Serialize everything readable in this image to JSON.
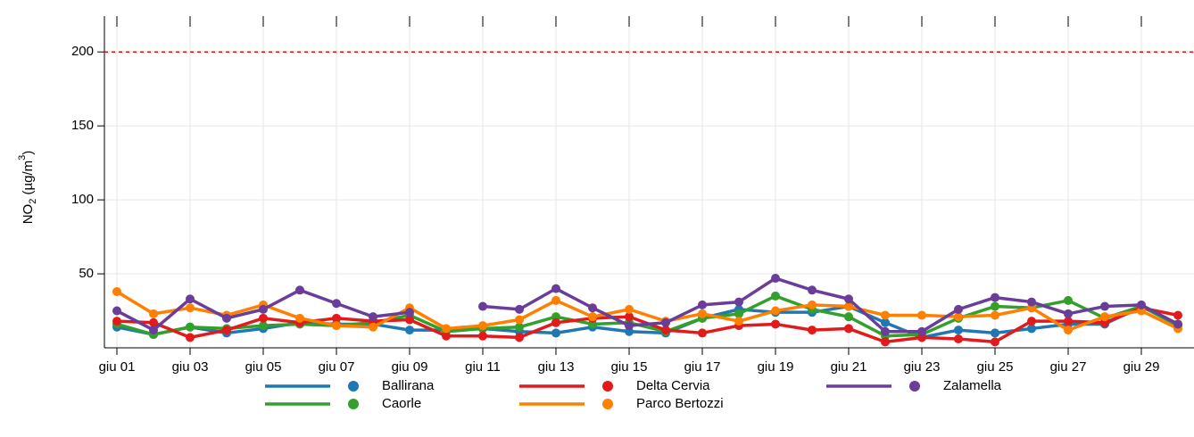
{
  "chart_data": {
    "type": "line",
    "ylabel": [
      "NO",
      "2",
      " (µg/m",
      "3",
      ")"
    ],
    "categories": [
      "giu 01",
      null,
      "giu 03",
      null,
      "giu 05",
      null,
      "giu 07",
      null,
      "giu 09",
      null,
      "giu 11",
      null,
      "giu 13",
      null,
      "giu 15",
      null,
      "giu 17",
      null,
      "giu 19",
      null,
      "giu 21",
      null,
      "giu 23",
      null,
      "giu 25",
      null,
      "giu 27",
      null,
      "giu 29",
      null
    ],
    "series": [
      {
        "name": "Ballirana",
        "color": "#1f78b4",
        "values": [
          14,
          9,
          14,
          10,
          13,
          17,
          16,
          16,
          12,
          12,
          13,
          11,
          10,
          14,
          11,
          10,
          20,
          26,
          24,
          24,
          28,
          17,
          7,
          12,
          10,
          13,
          16,
          16,
          28,
          16
        ]
      },
      {
        "name": "Caorle",
        "color": "#33a02c",
        "values": [
          16,
          9,
          14,
          13,
          15,
          16,
          15,
          17,
          22,
          11,
          13,
          14,
          21,
          16,
          17,
          11,
          20,
          23,
          35,
          26,
          21,
          8,
          9,
          20,
          28,
          27,
          32,
          20,
          28,
          15
        ]
      },
      {
        "name": "Delta Cervia",
        "color": "#e31a1c",
        "values": [
          18,
          17,
          7,
          12,
          20,
          17,
          20,
          18,
          19,
          8,
          8,
          7,
          17,
          20,
          21,
          12,
          10,
          15,
          16,
          12,
          13,
          4,
          7,
          6,
          4,
          18,
          18,
          17,
          27,
          22
        ]
      },
      {
        "name": "Parco Bertozzi",
        "color": "#ff7f00",
        "values": [
          38,
          23,
          27,
          22,
          29,
          20,
          15,
          14,
          27,
          13,
          15,
          19,
          32,
          21,
          26,
          18,
          23,
          18,
          25,
          29,
          28,
          22,
          22,
          21,
          22,
          27,
          12,
          21,
          25,
          13
        ]
      },
      {
        "name": "Zalamella",
        "color": "#6a3d9a",
        "values": [
          25,
          12,
          33,
          20,
          26,
          39,
          30,
          21,
          24,
          null,
          28,
          26,
          40,
          27,
          15,
          17,
          29,
          31,
          47,
          39,
          33,
          11,
          11,
          26,
          34,
          31,
          23,
          28,
          29,
          16
        ]
      }
    ],
    "ylim": [
      0,
      217
    ],
    "yticks": [
      50,
      100,
      150,
      200
    ],
    "grid": true,
    "reference_line": {
      "value": 200,
      "color": "#ff0000"
    },
    "legend": "bottom"
  }
}
